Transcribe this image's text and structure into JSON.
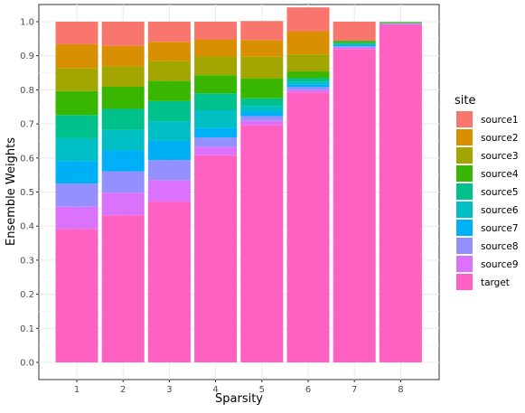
{
  "chart_data": {
    "type": "bar",
    "stacked": true,
    "xlabel": "Sparsity",
    "ylabel": "Ensemble Weights",
    "ylim": [
      0,
      1
    ],
    "yticks": [
      0.0,
      0.1,
      0.2,
      0.3,
      0.4,
      0.5,
      0.6,
      0.7,
      0.8,
      0.9,
      1.0
    ],
    "ytick_labels": [
      "0.0",
      "0.1",
      "0.2",
      "0.3",
      "0.4",
      "0.5",
      "0.6",
      "0.7",
      "0.8",
      "0.9",
      "1.0"
    ],
    "grid": true,
    "legend_position": "right",
    "legend_title": "site",
    "categories": [
      "1",
      "2",
      "3",
      "4",
      "5",
      "6",
      "7",
      "8"
    ],
    "series": [
      {
        "name": "target",
        "color": "#FF61C3",
        "values": [
          0.392,
          0.432,
          0.472,
          0.608,
          0.697,
          0.792,
          0.92,
          0.992
        ]
      },
      {
        "name": "source9",
        "color": "#DB72FB",
        "values": [
          0.065,
          0.066,
          0.063,
          0.025,
          0.013,
          0.008,
          0.004,
          0.001
        ]
      },
      {
        "name": "source8",
        "color": "#9590FF",
        "values": [
          0.068,
          0.063,
          0.059,
          0.027,
          0.013,
          0.008,
          0.004,
          0.001
        ]
      },
      {
        "name": "source7",
        "color": "#00B0F6",
        "values": [
          0.066,
          0.061,
          0.057,
          0.028,
          0.013,
          0.008,
          0.003,
          0.001
        ]
      },
      {
        "name": "source6",
        "color": "#00BFC4",
        "values": [
          0.067,
          0.06,
          0.057,
          0.052,
          0.017,
          0.008,
          0.003,
          0.001
        ]
      },
      {
        "name": "source5",
        "color": "#00C08B",
        "values": [
          0.068,
          0.062,
          0.059,
          0.05,
          0.022,
          0.01,
          0.004,
          0.001
        ]
      },
      {
        "name": "source4",
        "color": "#39B600",
        "values": [
          0.07,
          0.065,
          0.059,
          0.053,
          0.058,
          0.02,
          0.006,
          0.001
        ]
      },
      {
        "name": "source3",
        "color": "#A3A500",
        "values": [
          0.068,
          0.06,
          0.059,
          0.055,
          0.064,
          0.05,
          0.0,
          0.001
        ]
      },
      {
        "name": "source2",
        "color": "#D89000",
        "values": [
          0.07,
          0.06,
          0.056,
          0.05,
          0.049,
          0.068,
          0.0,
          0.001
        ]
      },
      {
        "name": "source1",
        "color": "#F8766D",
        "values": [
          0.066,
          0.071,
          0.059,
          0.052,
          0.056,
          0.07,
          0.056,
          0.0
        ]
      }
    ],
    "legend_order": [
      "source1",
      "source2",
      "source3",
      "source4",
      "source5",
      "source6",
      "source7",
      "source8",
      "source9",
      "target"
    ]
  }
}
